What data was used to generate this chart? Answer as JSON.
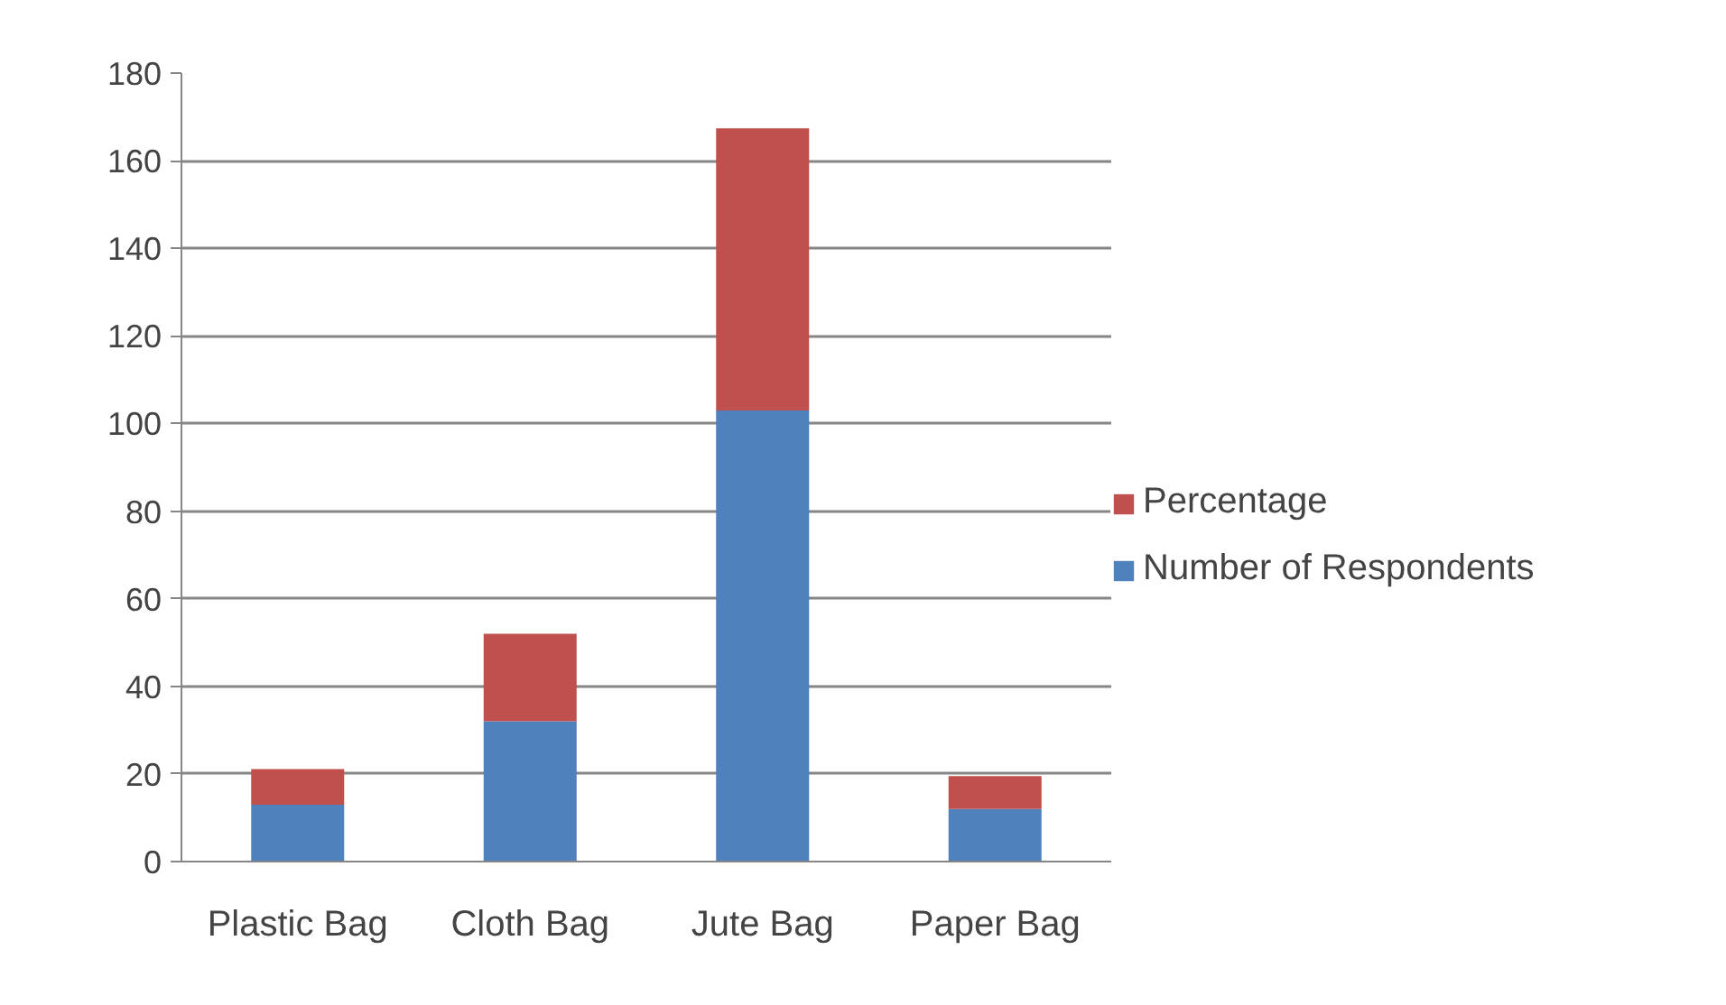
{
  "chart_data": {
    "type": "bar",
    "stacked": true,
    "categories": [
      "Plastic Bag",
      "Cloth Bag",
      "Jute Bag",
      "Paper Bag"
    ],
    "series": [
      {
        "name": "Number of Respondents",
        "color": "#4f81bd",
        "values": [
          13,
          32,
          103,
          12
        ]
      },
      {
        "name": "Percentage",
        "color": "#c0504d",
        "values": [
          8.1,
          20,
          64.4,
          7.5
        ]
      }
    ],
    "ylim": [
      0,
      180
    ],
    "yticks": [
      0,
      20,
      40,
      60,
      80,
      100,
      120,
      140,
      160,
      180
    ],
    "grid": "y",
    "legend": "right"
  }
}
